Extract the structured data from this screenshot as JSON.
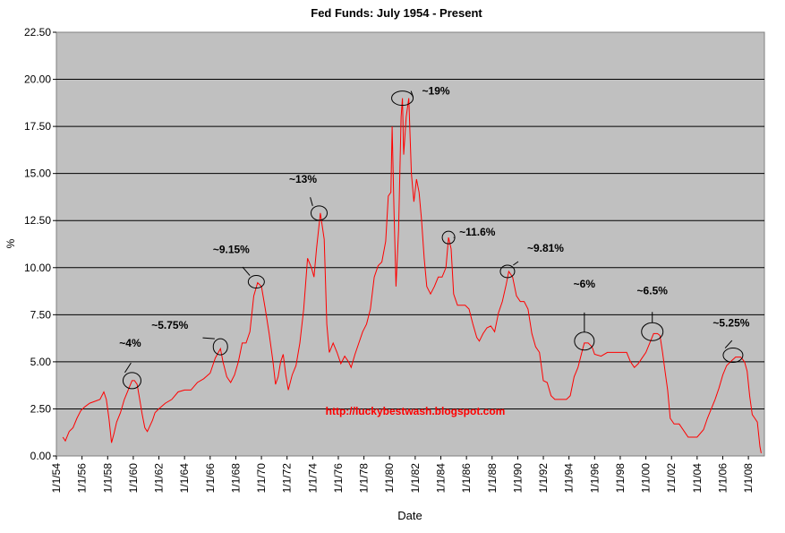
{
  "chart_data": {
    "type": "line",
    "title": "Fed Funds: July 1954 - Present",
    "xlabel": "Date",
    "ylabel": "%",
    "ylim": [
      0,
      22.5
    ],
    "xlim": [
      1954.0,
      2009.25
    ],
    "yticks": [
      "0.00",
      "2.50",
      "5.00",
      "7.50",
      "10.00",
      "12.50",
      "15.00",
      "17.50",
      "20.00",
      "22.50"
    ],
    "xticks": [
      "1/1/54",
      "1/1/56",
      "1/1/58",
      "1/1/60",
      "1/1/62",
      "1/1/64",
      "1/1/66",
      "1/1/68",
      "1/1/70",
      "1/1/72",
      "1/1/74",
      "1/1/76",
      "1/1/78",
      "1/1/80",
      "1/1/82",
      "1/1/84",
      "1/1/86",
      "1/1/88",
      "1/1/90",
      "1/1/92",
      "1/1/94",
      "1/1/96",
      "1/1/98",
      "1/1/00",
      "1/1/02",
      "1/1/04",
      "1/1/06",
      "1/1/08"
    ],
    "grid": "horizontal",
    "plot_background": "#c0c0c0",
    "line_color": "#ff0000",
    "watermark": "http://luckybestwash.blogspot.com",
    "watermark_color": "#ff0000",
    "annotations": [
      {
        "label": "~4%",
        "x": 1959.9,
        "y": 4.0
      },
      {
        "label": "~5.75%",
        "x": 1966.8,
        "y": 5.8
      },
      {
        "label": "~9.15%",
        "x": 1969.6,
        "y": 9.25
      },
      {
        "label": "~13%",
        "x": 1974.5,
        "y": 12.9
      },
      {
        "label": "~19%",
        "x": 1981.0,
        "y": 19.0
      },
      {
        "label": "~11.6%",
        "x": 1984.6,
        "y": 11.6
      },
      {
        "label": "~9.81%",
        "x": 1989.2,
        "y": 9.8
      },
      {
        "label": "~6%",
        "x": 1995.2,
        "y": 6.1
      },
      {
        "label": "~6.5%",
        "x": 2000.5,
        "y": 6.6
      },
      {
        "label": "~5.25%",
        "x": 2006.8,
        "y": 5.35
      }
    ],
    "series": [
      {
        "x": [
          1954.5,
          1954.7,
          1955.0,
          1955.3,
          1955.6,
          1955.9,
          1956.2,
          1956.6,
          1957.0,
          1957.4,
          1957.7,
          1957.9,
          1958.1,
          1958.3,
          1958.5,
          1958.7,
          1959.0,
          1959.3,
          1959.6,
          1959.9,
          1960.1,
          1960.3,
          1960.5,
          1960.7,
          1960.9,
          1961.1,
          1961.3,
          1961.5,
          1961.7,
          1962.0,
          1962.5,
          1963.0,
          1963.5,
          1964.0,
          1964.5,
          1965.0,
          1965.5,
          1966.0,
          1966.4,
          1966.8,
          1967.0,
          1967.3,
          1967.6,
          1967.9,
          1968.2,
          1968.5,
          1968.8,
          1969.1,
          1969.4,
          1969.7,
          1970.0,
          1970.3,
          1970.6,
          1970.9,
          1971.1,
          1971.3,
          1971.5,
          1971.7,
          1971.9,
          1972.1,
          1972.4,
          1972.7,
          1973.0,
          1973.3,
          1973.6,
          1973.9,
          1974.1,
          1974.3,
          1974.6,
          1974.9,
          1975.1,
          1975.3,
          1975.6,
          1975.9,
          1976.2,
          1976.5,
          1976.8,
          1977.0,
          1977.3,
          1977.6,
          1977.9,
          1978.2,
          1978.5,
          1978.8,
          1979.1,
          1979.4,
          1979.7,
          1979.9,
          1980.1,
          1980.2,
          1980.35,
          1980.5,
          1980.7,
          1980.9,
          1981.0,
          1981.1,
          1981.3,
          1981.5,
          1981.7,
          1981.9,
          1982.1,
          1982.3,
          1982.5,
          1982.7,
          1982.9,
          1983.2,
          1983.5,
          1983.8,
          1984.1,
          1984.4,
          1984.6,
          1984.8,
          1985.0,
          1985.3,
          1985.6,
          1985.9,
          1986.2,
          1986.5,
          1986.8,
          1987.0,
          1987.3,
          1987.6,
          1987.9,
          1988.2,
          1988.5,
          1988.8,
          1989.1,
          1989.3,
          1989.6,
          1989.9,
          1990.2,
          1990.5,
          1990.8,
          1991.1,
          1991.4,
          1991.7,
          1992.0,
          1992.3,
          1992.6,
          1992.9,
          1993.2,
          1993.5,
          1993.8,
          1994.1,
          1994.4,
          1994.7,
          1995.0,
          1995.2,
          1995.5,
          1995.8,
          1996.0,
          1996.5,
          1997.0,
          1997.5,
          1998.0,
          1998.5,
          1998.8,
          1999.1,
          1999.4,
          1999.7,
          2000.0,
          2000.3,
          2000.6,
          2000.9,
          2001.1,
          2001.3,
          2001.5,
          2001.7,
          2001.9,
          2002.2,
          2002.6,
          2003.0,
          2003.3,
          2003.6,
          2004.0,
          2004.5,
          2004.8,
          2005.1,
          2005.4,
          2005.7,
          2006.0,
          2006.3,
          2006.6,
          2007.0,
          2007.4,
          2007.7,
          2007.9,
          2008.1,
          2008.3,
          2008.5,
          2008.7,
          2008.9,
          2009.0
        ],
        "values": [
          1.0,
          0.8,
          1.3,
          1.5,
          2.0,
          2.4,
          2.6,
          2.8,
          2.9,
          3.0,
          3.4,
          3.0,
          2.0,
          0.7,
          1.2,
          1.8,
          2.3,
          3.0,
          3.5,
          4.0,
          4.0,
          3.8,
          3.0,
          2.2,
          1.5,
          1.3,
          1.6,
          1.9,
          2.3,
          2.5,
          2.8,
          3.0,
          3.4,
          3.5,
          3.5,
          3.9,
          4.1,
          4.4,
          5.2,
          5.7,
          5.0,
          4.2,
          3.9,
          4.3,
          5.0,
          6.0,
          6.0,
          6.6,
          8.5,
          9.2,
          9.0,
          7.8,
          6.5,
          5.0,
          3.8,
          4.2,
          5.0,
          5.4,
          4.3,
          3.5,
          4.3,
          4.8,
          6.0,
          7.8,
          10.5,
          10.0,
          9.5,
          11.0,
          12.9,
          11.5,
          7.0,
          5.5,
          6.0,
          5.5,
          4.9,
          5.3,
          5.0,
          4.7,
          5.4,
          6.0,
          6.6,
          7.0,
          7.8,
          9.5,
          10.1,
          10.3,
          11.4,
          13.8,
          14.0,
          17.5,
          13.0,
          9.0,
          12.0,
          18.0,
          19.0,
          16.0,
          18.0,
          19.0,
          15.0,
          13.5,
          14.7,
          14.0,
          12.5,
          10.5,
          9.0,
          8.6,
          9.0,
          9.5,
          9.5,
          10.0,
          11.6,
          11.0,
          8.6,
          8.0,
          8.0,
          8.0,
          7.8,
          7.0,
          6.3,
          6.1,
          6.5,
          6.8,
          6.9,
          6.6,
          7.6,
          8.2,
          9.1,
          9.8,
          9.5,
          8.5,
          8.2,
          8.2,
          7.8,
          6.5,
          5.8,
          5.5,
          4.0,
          3.9,
          3.2,
          3.0,
          3.0,
          3.0,
          3.0,
          3.2,
          4.2,
          4.7,
          5.5,
          6.0,
          6.0,
          5.8,
          5.4,
          5.3,
          5.5,
          5.5,
          5.5,
          5.5,
          5.0,
          4.7,
          4.9,
          5.2,
          5.5,
          6.0,
          6.5,
          6.5,
          6.4,
          5.5,
          4.5,
          3.5,
          2.0,
          1.7,
          1.7,
          1.3,
          1.0,
          1.0,
          1.0,
          1.4,
          2.0,
          2.5,
          3.0,
          3.6,
          4.3,
          4.8,
          5.0,
          5.25,
          5.25,
          5.0,
          4.5,
          3.2,
          2.2,
          2.0,
          1.8,
          0.5,
          0.15
        ]
      }
    ]
  }
}
